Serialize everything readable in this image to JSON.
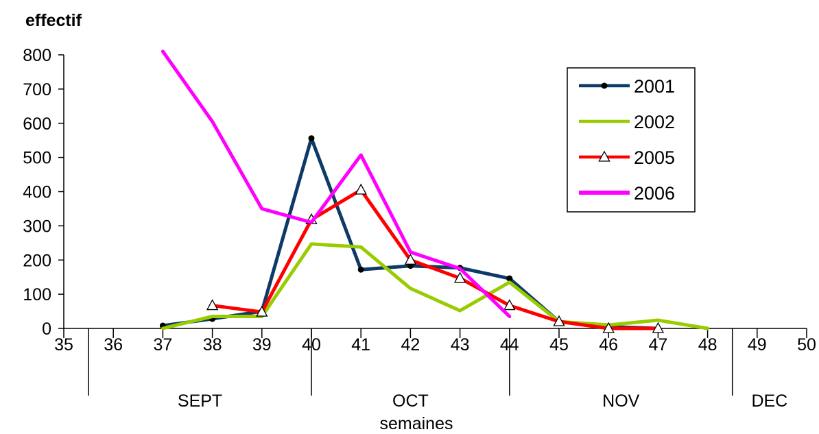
{
  "chart_data": {
    "type": "line",
    "ylabel": "effectif",
    "xlabel": "semaines",
    "ylim": [
      0,
      800
    ],
    "xlim": [
      35,
      50
    ],
    "yticks": [
      0,
      100,
      200,
      300,
      400,
      500,
      600,
      700,
      800
    ],
    "xticks": [
      35,
      36,
      37,
      38,
      39,
      40,
      41,
      42,
      43,
      44,
      45,
      46,
      47,
      48,
      49,
      50
    ],
    "months": [
      {
        "label": "SEPT",
        "start": 35.5,
        "end": 40
      },
      {
        "label": "OCT",
        "start": 40,
        "end": 44
      },
      {
        "label": "NOV",
        "start": 44,
        "end": 48.5
      },
      {
        "label": "DEC",
        "start": 48.5,
        "end": 50
      }
    ],
    "legend_position": "top-right",
    "series": [
      {
        "name": "2001",
        "color": "#0d3a66",
        "marker": "dot",
        "points": [
          [
            37,
            8
          ],
          [
            38,
            28
          ],
          [
            39,
            50
          ],
          [
            40,
            556
          ],
          [
            41,
            172
          ],
          [
            42,
            183
          ],
          [
            43,
            177
          ],
          [
            44,
            146
          ],
          [
            45,
            20
          ],
          [
            46,
            5
          ],
          [
            47,
            0
          ]
        ]
      },
      {
        "name": "2002",
        "color": "#99cc00",
        "marker": "none",
        "points": [
          [
            37,
            0
          ],
          [
            38,
            35
          ],
          [
            39,
            35
          ],
          [
            40,
            247
          ],
          [
            41,
            238
          ],
          [
            42,
            117
          ],
          [
            43,
            52
          ],
          [
            44,
            135
          ],
          [
            45,
            20
          ],
          [
            46,
            10
          ],
          [
            47,
            24
          ],
          [
            48,
            0
          ]
        ]
      },
      {
        "name": "2005",
        "color": "#ff0000",
        "marker": "triangle",
        "points": [
          [
            38,
            67
          ],
          [
            39,
            48
          ],
          [
            40,
            318
          ],
          [
            41,
            405
          ],
          [
            42,
            200
          ],
          [
            43,
            147
          ],
          [
            44,
            67
          ],
          [
            45,
            20
          ],
          [
            46,
            0
          ],
          [
            47,
            0
          ]
        ]
      },
      {
        "name": "2006",
        "color": "#ff00ff",
        "marker": "none",
        "points": [
          [
            37,
            810
          ],
          [
            38,
            605
          ],
          [
            39,
            350
          ],
          [
            40,
            310
          ],
          [
            41,
            507
          ],
          [
            42,
            223
          ],
          [
            43,
            175
          ],
          [
            44,
            35
          ]
        ]
      }
    ]
  }
}
